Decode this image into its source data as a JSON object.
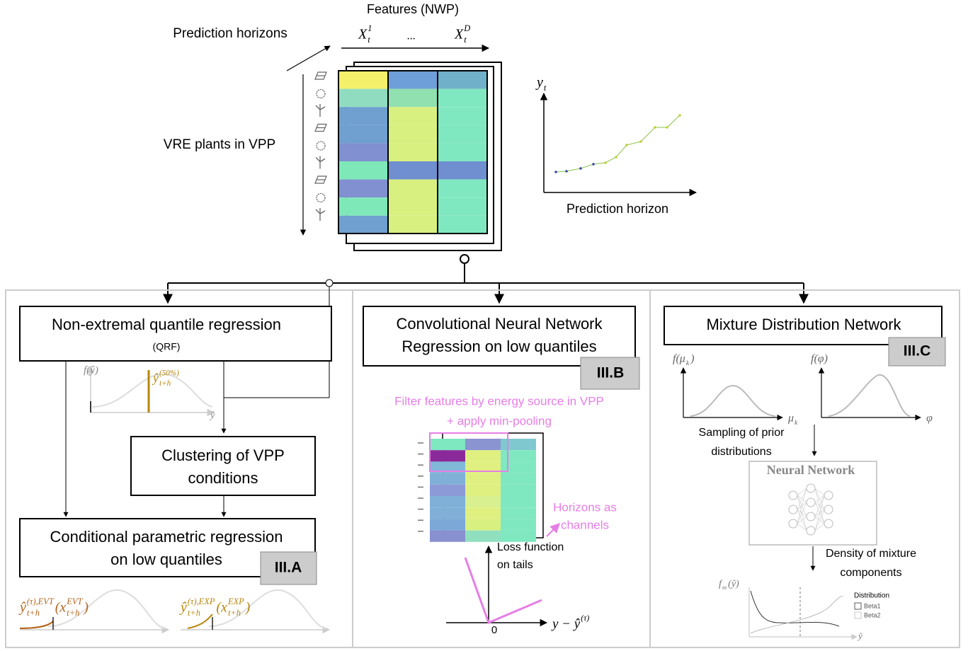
{
  "top": {
    "features_title": "Features (NWP)",
    "horizons_label": "Prediction horizons",
    "feature_labels": [
      [
        {
          "base": "X",
          "sup": "1",
          "sub": "t"
        }
      ],
      [
        {
          "base": "..."
        }
      ],
      [
        {
          "base": "X",
          "sup": "D",
          "sub": "t"
        }
      ]
    ],
    "plants_label": "VRE plants in VPP",
    "output_label": [
      {
        "base": "y",
        "sub": "t"
      }
    ],
    "output_axis_label": "Prediction horizon"
  },
  "section_a": {
    "box_title": "Non-extremal quantile regression",
    "box_subtitle": "(QRF)",
    "density_label": [
      {
        "base": "f(ŷ)"
      }
    ],
    "median_label": [
      {
        "base": "ŷ",
        "sup": "(50%)",
        "sub": "t+h"
      }
    ],
    "axis_label": [
      {
        "base": "ŷ"
      }
    ],
    "cluster_box": [
      "Clustering of VPP",
      "conditions"
    ],
    "regression_box": [
      "Conditional parametric regression",
      "on low quantiles"
    ],
    "tag": "III.A",
    "evt_label": [
      {
        "base": "ŷ",
        "sup": "(τ),EVT",
        "sub": "t+h"
      },
      {
        "base": "(x",
        "sup": "EVT",
        "sub": "t+h"
      },
      {
        "base": ")"
      }
    ],
    "exp_label": [
      {
        "base": "ŷ",
        "sup": "(τ),EXP",
        "sub": "t+h"
      },
      {
        "base": "(x",
        "sup": "EXP",
        "sub": "t+h"
      },
      {
        "base": ")"
      }
    ]
  },
  "section_b": {
    "box_title": [
      "Convolutional Neural Network",
      "Regression on low quantiles"
    ],
    "tag": "III.B",
    "filter_note": [
      "Filter features by energy source in VPP",
      "+ apply min-pooling"
    ],
    "channels_note": [
      "Horizons as",
      "channels"
    ],
    "loss_note": [
      "Loss function",
      "on tails"
    ],
    "origin_label": "0",
    "loss_axis_label": [
      {
        "base": "y − ŷ",
        "sup": "(τ)"
      }
    ]
  },
  "section_c": {
    "box_title": "Mixture Distribution Network",
    "tag": "III.C",
    "prior_mu_label": [
      {
        "base": "f(μ",
        "sub": "k"
      },
      {
        "base": ")"
      }
    ],
    "prior_phi_label": [
      {
        "base": "f(φ)"
      }
    ],
    "mu_axis": [
      {
        "base": "μ",
        "sub": "k"
      }
    ],
    "phi_axis": [
      {
        "base": "φ"
      }
    ],
    "sampling_note": [
      "Sampling of prior",
      "distributions"
    ],
    "network_label": "Neural Network",
    "density_note": [
      "Density of mixture",
      "components"
    ],
    "mixture_label": [
      {
        "base": "f",
        "sub": "m"
      },
      {
        "base": "(ŷ)"
      }
    ],
    "legend_title": "Distribution",
    "legend_items": [
      "Beta1",
      "Beta2"
    ],
    "axis_label": [
      {
        "base": "ŷ"
      }
    ]
  }
}
